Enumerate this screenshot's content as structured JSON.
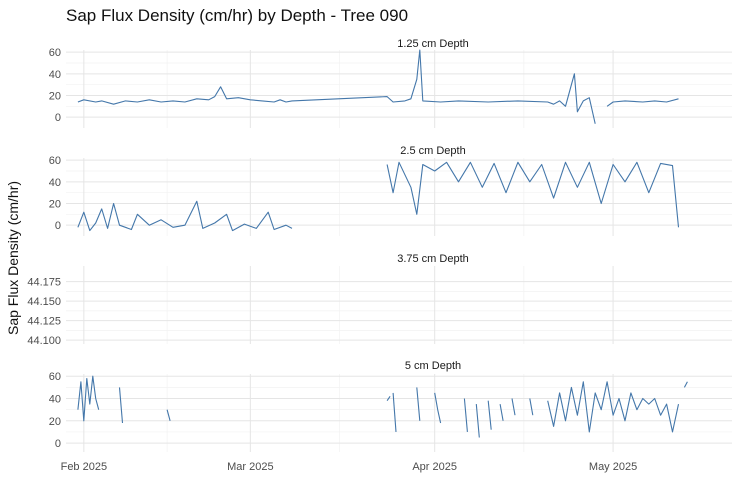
{
  "chart_data": {
    "type": "line",
    "title": "Sap Flux Density (cm/hr) by Depth - Tree 090",
    "ylabel": "Sap Flux Density (cm/hr)",
    "xlabel": "",
    "x_ticks": [
      "Feb 2025",
      "Mar 2025",
      "Apr 2025",
      "May 2025"
    ],
    "x_range": [
      "2025-01-29",
      "2025-05-21"
    ],
    "series_color": "#4477aa",
    "grid": true,
    "panels": [
      {
        "label": "1.25 cm Depth",
        "ylim": [
          -10,
          62
        ],
        "yticks": [
          "0",
          "20",
          "40",
          "60"
        ],
        "yvals": [
          0,
          20,
          40,
          60
        ],
        "segments": [
          [
            [
              "2025-01-31",
              14
            ],
            [
              "2025-02-01",
              16
            ],
            [
              "2025-02-03",
              14
            ],
            [
              "2025-02-04",
              15
            ],
            [
              "2025-02-06",
              12
            ],
            [
              "2025-02-08",
              15
            ],
            [
              "2025-02-10",
              14
            ],
            [
              "2025-02-12",
              16
            ],
            [
              "2025-02-14",
              14
            ],
            [
              "2025-02-16",
              15
            ],
            [
              "2025-02-18",
              14
            ],
            [
              "2025-02-20",
              17
            ],
            [
              "2025-02-22",
              16
            ],
            [
              "2025-02-23",
              19
            ],
            [
              "2025-02-24",
              28
            ],
            [
              "2025-02-25",
              17
            ],
            [
              "2025-02-27",
              18
            ],
            [
              "2025-03-01",
              16
            ],
            [
              "2025-03-03",
              15
            ],
            [
              "2025-03-05",
              14
            ],
            [
              "2025-03-06",
              16
            ],
            [
              "2025-03-07",
              14
            ],
            [
              "2025-03-08",
              15
            ],
            [
              "2025-03-24",
              19
            ],
            [
              "2025-03-25",
              14
            ],
            [
              "2025-03-27",
              15
            ],
            [
              "2025-03-28",
              17
            ],
            [
              "2025-03-29",
              35
            ],
            [
              "2025-03-29T12",
              62
            ],
            [
              "2025-03-30",
              15
            ],
            [
              "2025-04-02",
              14
            ],
            [
              "2025-04-05",
              15
            ],
            [
              "2025-04-10",
              14
            ],
            [
              "2025-04-15",
              15
            ],
            [
              "2025-04-20",
              14
            ],
            [
              "2025-04-21",
              12
            ],
            [
              "2025-04-22",
              15
            ],
            [
              "2025-04-23",
              10
            ],
            [
              "2025-04-24",
              30
            ],
            [
              "2025-04-24T12",
              40
            ],
            [
              "2025-04-25",
              5
            ],
            [
              "2025-04-26",
              15
            ],
            [
              "2025-04-27",
              18
            ],
            [
              "2025-04-28",
              -6
            ]
          ],
          [
            [
              "2025-04-30",
              10
            ],
            [
              "2025-05-01",
              14
            ],
            [
              "2025-05-03",
              15
            ],
            [
              "2025-05-06",
              14
            ],
            [
              "2025-05-08",
              15
            ],
            [
              "2025-05-10",
              14
            ],
            [
              "2025-05-12",
              17
            ]
          ]
        ]
      },
      {
        "label": "2.5 cm Depth",
        "ylim": [
          -10,
          62
        ],
        "yticks": [
          "0",
          "20",
          "40",
          "60"
        ],
        "yvals": [
          0,
          20,
          40,
          60
        ],
        "segments": [
          [
            [
              "2025-01-31",
              -2
            ],
            [
              "2025-02-01",
              12
            ],
            [
              "2025-02-02",
              -5
            ],
            [
              "2025-02-03",
              2
            ],
            [
              "2025-02-04",
              15
            ],
            [
              "2025-02-05",
              -3
            ],
            [
              "2025-02-06",
              20
            ],
            [
              "2025-02-07",
              0
            ],
            [
              "2025-02-09",
              -4
            ],
            [
              "2025-02-10",
              10
            ],
            [
              "2025-02-12",
              0
            ],
            [
              "2025-02-14",
              5
            ],
            [
              "2025-02-16",
              -2
            ],
            [
              "2025-02-18",
              0
            ],
            [
              "2025-02-20",
              22
            ],
            [
              "2025-02-21",
              -3
            ],
            [
              "2025-02-23",
              2
            ],
            [
              "2025-02-25",
              10
            ],
            [
              "2025-02-26",
              -5
            ],
            [
              "2025-02-28",
              1
            ],
            [
              "2025-03-02",
              -3
            ],
            [
              "2025-03-04",
              12
            ],
            [
              "2025-03-05",
              -4
            ],
            [
              "2025-03-07",
              0
            ],
            [
              "2025-03-08",
              -3
            ]
          ],
          [
            [
              "2025-03-24",
              56
            ],
            [
              "2025-03-25",
              30
            ],
            [
              "2025-03-26",
              58
            ],
            [
              "2025-03-28",
              35
            ],
            [
              "2025-03-29",
              10
            ],
            [
              "2025-03-30",
              56
            ],
            [
              "2025-04-01",
              50
            ],
            [
              "2025-04-03",
              58
            ],
            [
              "2025-04-05",
              40
            ],
            [
              "2025-04-07",
              58
            ],
            [
              "2025-04-09",
              35
            ],
            [
              "2025-04-11",
              57
            ],
            [
              "2025-04-13",
              30
            ],
            [
              "2025-04-15",
              58
            ],
            [
              "2025-04-17",
              40
            ],
            [
              "2025-04-19",
              56
            ],
            [
              "2025-04-21",
              25
            ],
            [
              "2025-04-23",
              58
            ],
            [
              "2025-04-25",
              35
            ],
            [
              "2025-04-27",
              58
            ],
            [
              "2025-04-29",
              20
            ],
            [
              "2025-05-01",
              56
            ],
            [
              "2025-05-03",
              40
            ],
            [
              "2025-05-05",
              58
            ],
            [
              "2025-05-07",
              30
            ],
            [
              "2025-05-09",
              57
            ],
            [
              "2025-05-11",
              55
            ],
            [
              "2025-05-12",
              -2
            ]
          ]
        ]
      },
      {
        "label": "3.75 cm Depth",
        "ylim": [
          44.095,
          44.195
        ],
        "yticks": [
          "44.100",
          "44.125",
          "44.150",
          "44.175"
        ],
        "yvals": [
          44.1,
          44.125,
          44.15,
          44.175
        ],
        "segments": []
      },
      {
        "label": "5 cm Depth",
        "ylim": [
          -8,
          62
        ],
        "yticks": [
          "0",
          "20",
          "40",
          "60"
        ],
        "yvals": [
          0,
          20,
          40,
          60
        ],
        "segments": [
          [
            [
              "2025-01-31",
              30
            ],
            [
              "2025-01-31T12",
              55
            ],
            [
              "2025-02-01",
              20
            ],
            [
              "2025-02-01T12",
              58
            ],
            [
              "2025-02-02",
              35
            ],
            [
              "2025-02-02T12",
              60
            ],
            [
              "2025-02-03",
              40
            ],
            [
              "2025-02-03T12",
              30
            ]
          ],
          [
            [
              "2025-02-07",
              50
            ],
            [
              "2025-02-07T12",
              18
            ]
          ],
          [
            [
              "2025-02-15",
              30
            ],
            [
              "2025-02-15T12",
              20
            ]
          ],
          [
            [
              "2025-03-24",
              38
            ],
            [
              "2025-03-24T12",
              42
            ]
          ],
          [
            [
              "2025-03-25",
              45
            ],
            [
              "2025-03-25T12",
              10
            ]
          ],
          [
            [
              "2025-03-29",
              50
            ],
            [
              "2025-03-29T12",
              20
            ]
          ],
          [
            [
              "2025-04-01",
              45
            ],
            [
              "2025-04-01T12",
              30
            ],
            [
              "2025-04-02",
              18
            ]
          ],
          [
            [
              "2025-04-06",
              40
            ],
            [
              "2025-04-06T12",
              10
            ]
          ],
          [
            [
              "2025-04-08",
              35
            ],
            [
              "2025-04-08T12",
              5
            ]
          ],
          [
            [
              "2025-04-10",
              38
            ],
            [
              "2025-04-10T12",
              12
            ]
          ],
          [
            [
              "2025-04-12",
              35
            ],
            [
              "2025-04-12T12",
              20
            ]
          ],
          [
            [
              "2025-04-14",
              40
            ],
            [
              "2025-04-14T12",
              25
            ]
          ],
          [
            [
              "2025-04-17",
              40
            ],
            [
              "2025-04-17T12",
              25
            ]
          ],
          [
            [
              "2025-04-20",
              38
            ],
            [
              "2025-04-21",
              15
            ],
            [
              "2025-04-22",
              45
            ],
            [
              "2025-04-23",
              20
            ],
            [
              "2025-04-24",
              50
            ],
            [
              "2025-04-25",
              25
            ],
            [
              "2025-04-26",
              55
            ],
            [
              "2025-04-27",
              10
            ],
            [
              "2025-04-28",
              45
            ],
            [
              "2025-04-29",
              30
            ],
            [
              "2025-04-30",
              55
            ],
            [
              "2025-05-01",
              25
            ],
            [
              "2025-05-02",
              40
            ],
            [
              "2025-05-03",
              20
            ],
            [
              "2025-05-04",
              45
            ],
            [
              "2025-05-05",
              30
            ],
            [
              "2025-05-06",
              40
            ],
            [
              "2025-05-07",
              35
            ],
            [
              "2025-05-08",
              40
            ],
            [
              "2025-05-09",
              25
            ],
            [
              "2025-05-10",
              35
            ],
            [
              "2025-05-11",
              10
            ],
            [
              "2025-05-12",
              35
            ]
          ],
          [
            [
              "2025-05-13",
              50
            ],
            [
              "2025-05-13T12",
              55
            ]
          ]
        ]
      }
    ]
  }
}
